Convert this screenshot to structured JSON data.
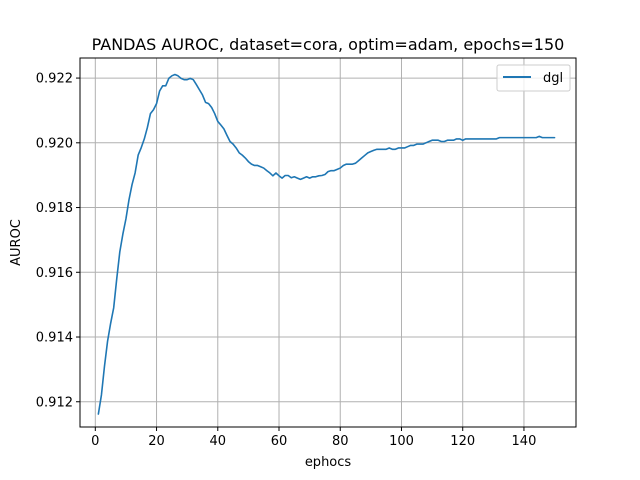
{
  "chart_data": {
    "type": "line",
    "title": "PANDAS AUROC, dataset=cora, optim=adam, epochs=150",
    "xlabel": "ephocs",
    "ylabel": "AUROC",
    "xlim": [
      -5,
      157
    ],
    "ylim": [
      0.91122,
      0.92262
    ],
    "xticks": [
      0,
      20,
      40,
      60,
      80,
      100,
      120,
      140
    ],
    "yticks": [
      0.912,
      0.914,
      0.916,
      0.918,
      0.92,
      0.922
    ],
    "ytick_labels": [
      "0.912",
      "0.914",
      "0.916",
      "0.918",
      "0.920",
      "0.922"
    ],
    "grid": true,
    "legend_position": "top-right",
    "series": [
      {
        "name": "dgl",
        "color": "#1f77b4",
        "x": [
          1,
          2,
          3,
          4,
          5,
          6,
          7,
          8,
          9,
          10,
          11,
          12,
          13,
          14,
          15,
          16,
          17,
          18,
          19,
          20,
          21,
          22,
          23,
          24,
          25,
          26,
          27,
          28,
          29,
          30,
          31,
          32,
          33,
          34,
          35,
          36,
          37,
          38,
          39,
          40,
          41,
          42,
          43,
          44,
          45,
          46,
          47,
          48,
          49,
          50,
          51,
          52,
          53,
          54,
          55,
          56,
          57,
          58,
          59,
          60,
          61,
          62,
          63,
          64,
          65,
          66,
          67,
          68,
          69,
          70,
          71,
          72,
          73,
          74,
          75,
          76,
          77,
          78,
          79,
          80,
          81,
          82,
          83,
          84,
          85,
          86,
          87,
          88,
          89,
          90,
          91,
          92,
          93,
          94,
          95,
          96,
          97,
          98,
          99,
          100,
          101,
          102,
          103,
          104,
          105,
          106,
          107,
          108,
          109,
          110,
          111,
          112,
          113,
          114,
          115,
          116,
          117,
          118,
          119,
          120,
          121,
          122,
          123,
          124,
          125,
          126,
          127,
          128,
          129,
          130,
          131,
          132,
          133,
          134,
          135,
          136,
          137,
          138,
          139,
          140,
          141,
          142,
          143,
          144,
          145,
          146,
          147,
          148,
          149,
          150
        ],
        "y": [
          0.91162,
          0.91221,
          0.9131,
          0.91387,
          0.91442,
          0.9149,
          0.9158,
          0.91663,
          0.91718,
          0.91765,
          0.91824,
          0.91871,
          0.91907,
          0.91962,
          0.91985,
          0.92012,
          0.92047,
          0.9209,
          0.92102,
          0.92121,
          0.9216,
          0.92176,
          0.92176,
          0.92199,
          0.92207,
          0.92211,
          0.92207,
          0.92199,
          0.92195,
          0.92195,
          0.92199,
          0.92195,
          0.9218,
          0.92164,
          0.92148,
          0.92125,
          0.92121,
          0.92109,
          0.9209,
          0.92066,
          0.92055,
          0.92043,
          0.92023,
          0.92004,
          0.91996,
          0.91984,
          0.91969,
          0.91962,
          0.91953,
          0.91942,
          0.91934,
          0.9193,
          0.9193,
          0.91926,
          0.91922,
          0.91914,
          0.91907,
          0.91898,
          0.91907,
          0.91898,
          0.91891,
          0.91899,
          0.91899,
          0.91892,
          0.91895,
          0.91891,
          0.91887,
          0.91891,
          0.91895,
          0.91891,
          0.91895,
          0.91895,
          0.91898,
          0.91899,
          0.91902,
          0.91911,
          0.91914,
          0.91914,
          0.91918,
          0.91922,
          0.9193,
          0.91934,
          0.91934,
          0.91934,
          0.91937,
          0.91945,
          0.91953,
          0.91961,
          0.91969,
          0.91973,
          0.91977,
          0.9198,
          0.9198,
          0.9198,
          0.9198,
          0.91984,
          0.9198,
          0.9198,
          0.91984,
          0.91984,
          0.91984,
          0.91988,
          0.91992,
          0.91992,
          0.91996,
          0.91996,
          0.91996,
          0.92,
          0.92004,
          0.92008,
          0.92008,
          0.92008,
          0.92004,
          0.92004,
          0.92008,
          0.92008,
          0.92008,
          0.92012,
          0.92012,
          0.92008,
          0.92012,
          0.92012,
          0.92012,
          0.92012,
          0.92012,
          0.92012,
          0.92012,
          0.92012,
          0.92012,
          0.92012,
          0.92012,
          0.92016,
          0.92016,
          0.92016,
          0.92016,
          0.92016,
          0.92016,
          0.92016,
          0.92016,
          0.92016,
          0.92016,
          0.92016,
          0.92016,
          0.92016,
          0.9202,
          0.92016,
          0.92016,
          0.92016,
          0.92016,
          0.92016
        ]
      }
    ]
  }
}
